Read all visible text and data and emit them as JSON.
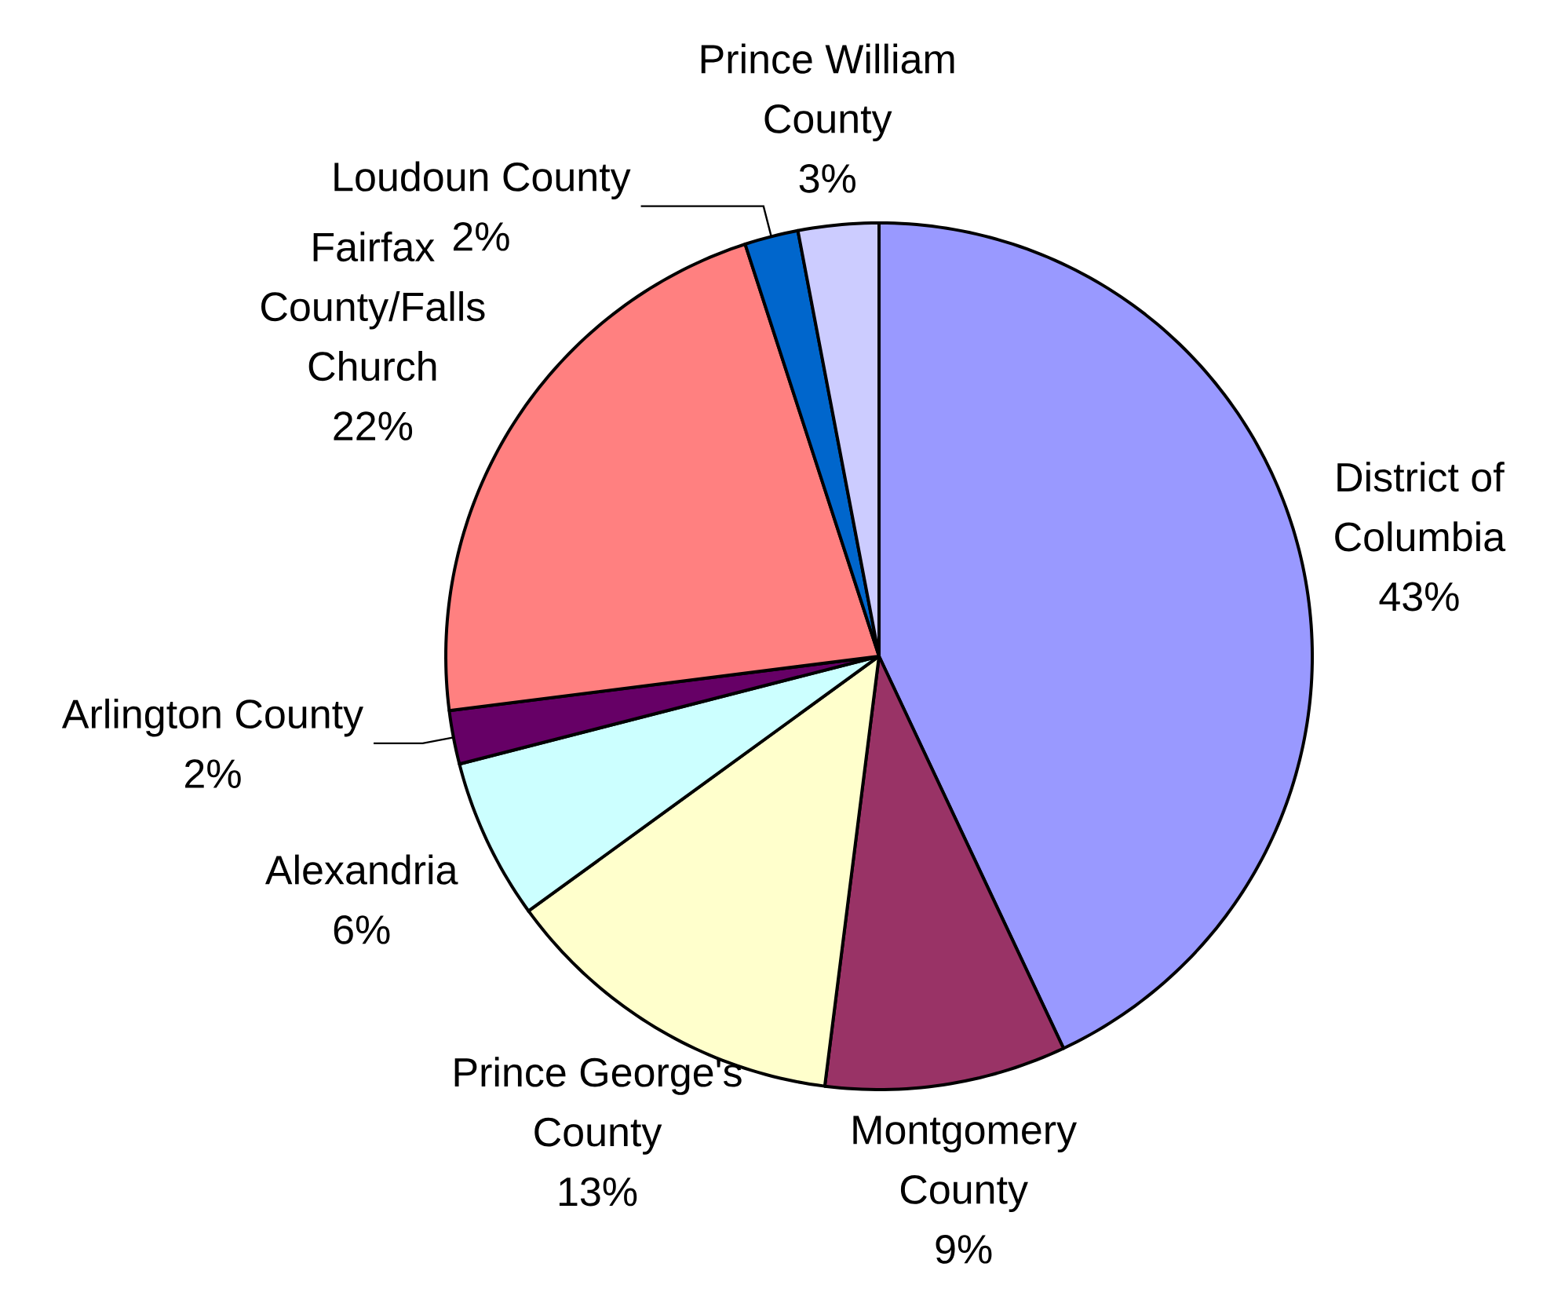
{
  "chart_data": {
    "type": "pie",
    "categories": [
      "District of Columbia",
      "Montgomery County",
      "Prince George's County",
      "Alexandria",
      "Arlington County",
      "Fairfax County/Falls Church",
      "Loudoun County",
      "Prince William County"
    ],
    "values": [
      43,
      9,
      13,
      6,
      2,
      22,
      2,
      3
    ],
    "value_labels": [
      "43%",
      "9%",
      "13%",
      "6%",
      "2%",
      "22%",
      "2%",
      "3%"
    ],
    "colors": [
      "#9999ff",
      "#993366",
      "#ffffcc",
      "#ccffff",
      "#660066",
      "#ff8080",
      "#0066cc",
      "#ccccff"
    ]
  }
}
